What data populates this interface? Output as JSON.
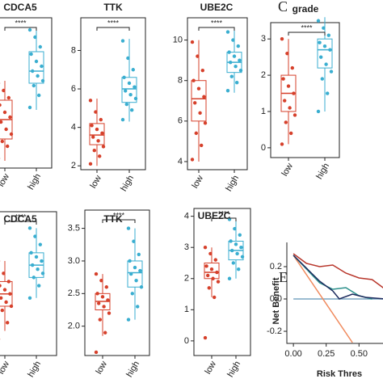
{
  "chart_data": [
    {
      "type": "box",
      "title": "CDCA5",
      "categories": [
        "low",
        "high"
      ],
      "significance": "****",
      "ylim": [
        2,
        8.2
      ],
      "boxes": [
        {
          "color": "#d6402b",
          "whisker_low": 2.3,
          "q1": 3.2,
          "median": 4.0,
          "q3": 4.8,
          "whisker_high": 5.6,
          "points": [
            2.4,
            2.9,
            3.1,
            3.4,
            3.6,
            3.9,
            4.1,
            4.3,
            4.6,
            4.9,
            5.2,
            5.5
          ]
        },
        {
          "color": "#3aaed0",
          "whisker_low": 4.4,
          "q1": 5.5,
          "median": 6.0,
          "q3": 6.8,
          "whisker_high": 7.8,
          "points": [
            4.5,
            5.0,
            5.4,
            5.6,
            5.8,
            6.0,
            6.2,
            6.4,
            6.7,
            7.0,
            7.4,
            7.7
          ]
        }
      ]
    },
    {
      "type": "box",
      "title": "TTK",
      "categories": [
        "low",
        "high"
      ],
      "significance": "****",
      "ylim": [
        1.8,
        9.7
      ],
      "yticks": [
        2,
        4,
        6,
        8
      ],
      "boxes": [
        {
          "color": "#d6402b",
          "whisker_low": 2.0,
          "q1": 3.1,
          "median": 3.6,
          "q3": 4.2,
          "whisker_high": 5.5,
          "points": [
            2.1,
            2.5,
            2.8,
            3.0,
            3.3,
            3.5,
            3.7,
            3.9,
            4.1,
            4.4,
            4.8,
            5.4
          ]
        },
        {
          "color": "#3aaed0",
          "whisker_low": 4.3,
          "q1": 5.3,
          "median": 6.0,
          "q3": 6.6,
          "whisker_high": 8.6,
          "points": [
            4.4,
            4.9,
            5.2,
            5.5,
            5.7,
            5.9,
            6.1,
            6.3,
            6.6,
            7.0,
            7.6,
            8.5
          ]
        }
      ]
    },
    {
      "type": "box",
      "title": "UBE2C",
      "categories": [
        "low",
        "high"
      ],
      "significance": "****",
      "ylim": [
        3.6,
        11.1
      ],
      "yticks": [
        4,
        6,
        8,
        10
      ],
      "boxes": [
        {
          "color": "#d6402b",
          "whisker_low": 4.0,
          "q1": 6.0,
          "median": 7.1,
          "q3": 8.0,
          "whisker_high": 10.0,
          "points": [
            4.1,
            4.8,
            5.4,
            5.9,
            6.4,
            6.9,
            7.2,
            7.6,
            8.0,
            8.5,
            9.2,
            9.9
          ]
        },
        {
          "color": "#3aaed0",
          "whisker_low": 7.4,
          "q1": 8.4,
          "median": 8.9,
          "q3": 9.4,
          "whisker_high": 10.5,
          "points": [
            7.5,
            7.9,
            8.2,
            8.5,
            8.7,
            8.9,
            9.0,
            9.2,
            9.4,
            9.7,
            10.0,
            10.4
          ]
        }
      ]
    },
    {
      "type": "box",
      "letter": "C",
      "title": "grade",
      "categories": [
        "low",
        "high"
      ],
      "significance": "****",
      "ylim": [
        -0.27,
        3.45
      ],
      "yticks": [
        0,
        1,
        2,
        3
      ],
      "boxes": [
        {
          "color": "#d6402b",
          "whisker_low": 0.1,
          "q1": 1.0,
          "median": 1.5,
          "q3": 2.0,
          "whisker_high": 3.0,
          "points": [
            0.1,
            0.4,
            0.7,
            0.9,
            1.1,
            1.3,
            1.5,
            1.7,
            1.9,
            2.2,
            2.6,
            3.0
          ]
        },
        {
          "color": "#3aaed0",
          "whisker_low": 1.0,
          "q1": 2.2,
          "median": 2.7,
          "q3": 3.0,
          "whisker_high": 3.6,
          "points": [
            1.0,
            1.5,
            1.9,
            2.1,
            2.3,
            2.5,
            2.7,
            2.8,
            2.9,
            3.1,
            3.3,
            3.5
          ]
        }
      ]
    },
    {
      "type": "box",
      "title": "CDCA5",
      "categories": [
        "low",
        "high"
      ],
      "significance": "****",
      "ylim": [
        0.8,
        4.3
      ],
      "boxes": [
        {
          "color": "#d6402b",
          "whisker_low": 1.4,
          "q1": 2.0,
          "median": 2.3,
          "q3": 2.6,
          "whisker_high": 3.1,
          "points": [
            1.2,
            1.6,
            1.9,
            2.0,
            2.1,
            2.2,
            2.3,
            2.4,
            2.5,
            2.6,
            2.8,
            3.1
          ]
        },
        {
          "color": "#3aaed0",
          "whisker_low": 2.2,
          "q1": 2.7,
          "median": 3.0,
          "q3": 3.3,
          "whisker_high": 3.9,
          "points": [
            2.2,
            2.5,
            2.7,
            2.8,
            2.9,
            3.0,
            3.1,
            3.2,
            3.3,
            3.5,
            3.7,
            3.9
          ]
        }
      ]
    },
    {
      "type": "box",
      "title": "TTK",
      "categories": [
        "low",
        "high"
      ],
      "significance": "****",
      "ylim": [
        1.55,
        3.78
      ],
      "yticks": [
        {
          "value": 2.0,
          "label": "2.0"
        },
        2.5,
        {
          "value": 3.0,
          "label": "3.0"
        },
        3.5
      ],
      "boxes": [
        {
          "color": "#d6402b",
          "whisker_low": 1.85,
          "q1": 2.25,
          "median": 2.38,
          "q3": 2.5,
          "whisker_high": 2.8,
          "points": [
            1.6,
            1.9,
            2.1,
            2.2,
            2.3,
            2.35,
            2.4,
            2.45,
            2.5,
            2.6,
            2.7,
            2.8
          ]
        },
        {
          "color": "#3aaed0",
          "whisker_low": 2.1,
          "q1": 2.6,
          "median": 2.82,
          "q3": 3.0,
          "whisker_high": 3.5,
          "points": [
            2.1,
            2.3,
            2.5,
            2.6,
            2.7,
            2.8,
            2.85,
            2.9,
            3.0,
            3.1,
            3.3,
            3.5
          ]
        }
      ]
    },
    {
      "type": "box",
      "title": "UBE2C",
      "categories": [
        "low",
        "high"
      ],
      "significance": "****",
      "ylim": [
        -0.47,
        4.25
      ],
      "yticks": [
        0,
        1,
        2,
        3,
        4
      ],
      "boxes": [
        {
          "color": "#d6402b",
          "whisker_low": 1.4,
          "q1": 2.0,
          "median": 2.2,
          "q3": 2.5,
          "whisker_high": 3.0,
          "points": [
            0.1,
            1.4,
            1.7,
            1.9,
            2.0,
            2.1,
            2.2,
            2.3,
            2.4,
            2.6,
            2.8,
            3.0
          ]
        },
        {
          "color": "#3aaed0",
          "whisker_low": 2.0,
          "q1": 2.6,
          "median": 2.9,
          "q3": 3.2,
          "whisker_high": 3.9,
          "points": [
            2.0,
            2.3,
            2.5,
            2.7,
            2.8,
            2.9,
            3.0,
            3.1,
            3.2,
            3.4,
            3.6,
            3.9
          ]
        }
      ]
    },
    {
      "type": "line",
      "letter": "E",
      "y_label": "Net Benefit",
      "x_label": "Risk Thres",
      "xlim": [
        -0.05,
        0.72
      ],
      "ylim": [
        -0.275,
        0.35
      ],
      "xticks": [
        {
          "value": 0,
          "label": "0.00"
        },
        0.25,
        {
          "value": 0.5,
          "label": "0.50"
        }
      ],
      "yticks": [
        {
          "value": -0.2,
          "label": "-0.2"
        },
        {
          "value": 0,
          "label": "0.0"
        },
        0.2
      ],
      "series": [
        {
          "color": "#7aa6c2",
          "x": [
            0,
            0.7
          ],
          "values": [
            0,
            0
          ]
        },
        {
          "color": "#f08a5d",
          "x": [
            0,
            0.45
          ],
          "values": [
            0.27,
            -0.27
          ]
        },
        {
          "color": "#b8362b",
          "x": [
            0,
            0.1,
            0.2,
            0.3,
            0.4,
            0.5,
            0.6,
            0.7
          ],
          "values": [
            0.28,
            0.22,
            0.2,
            0.21,
            0.16,
            0.13,
            0.12,
            0.06
          ]
        },
        {
          "color": "#2a8f8a",
          "x": [
            0,
            0.2,
            0.3,
            0.4,
            0.5,
            0.6
          ],
          "values": [
            0.27,
            0.1,
            0.06,
            0.07,
            0.02,
            0.0
          ]
        },
        {
          "color": "#1d2b5e",
          "x": [
            0,
            0.2,
            0.3,
            0.35,
            0.45,
            0.55,
            0.7
          ],
          "values": [
            0.27,
            0.11,
            0.05,
            0.0,
            0.03,
            0.01,
            0.0
          ]
        }
      ]
    }
  ]
}
